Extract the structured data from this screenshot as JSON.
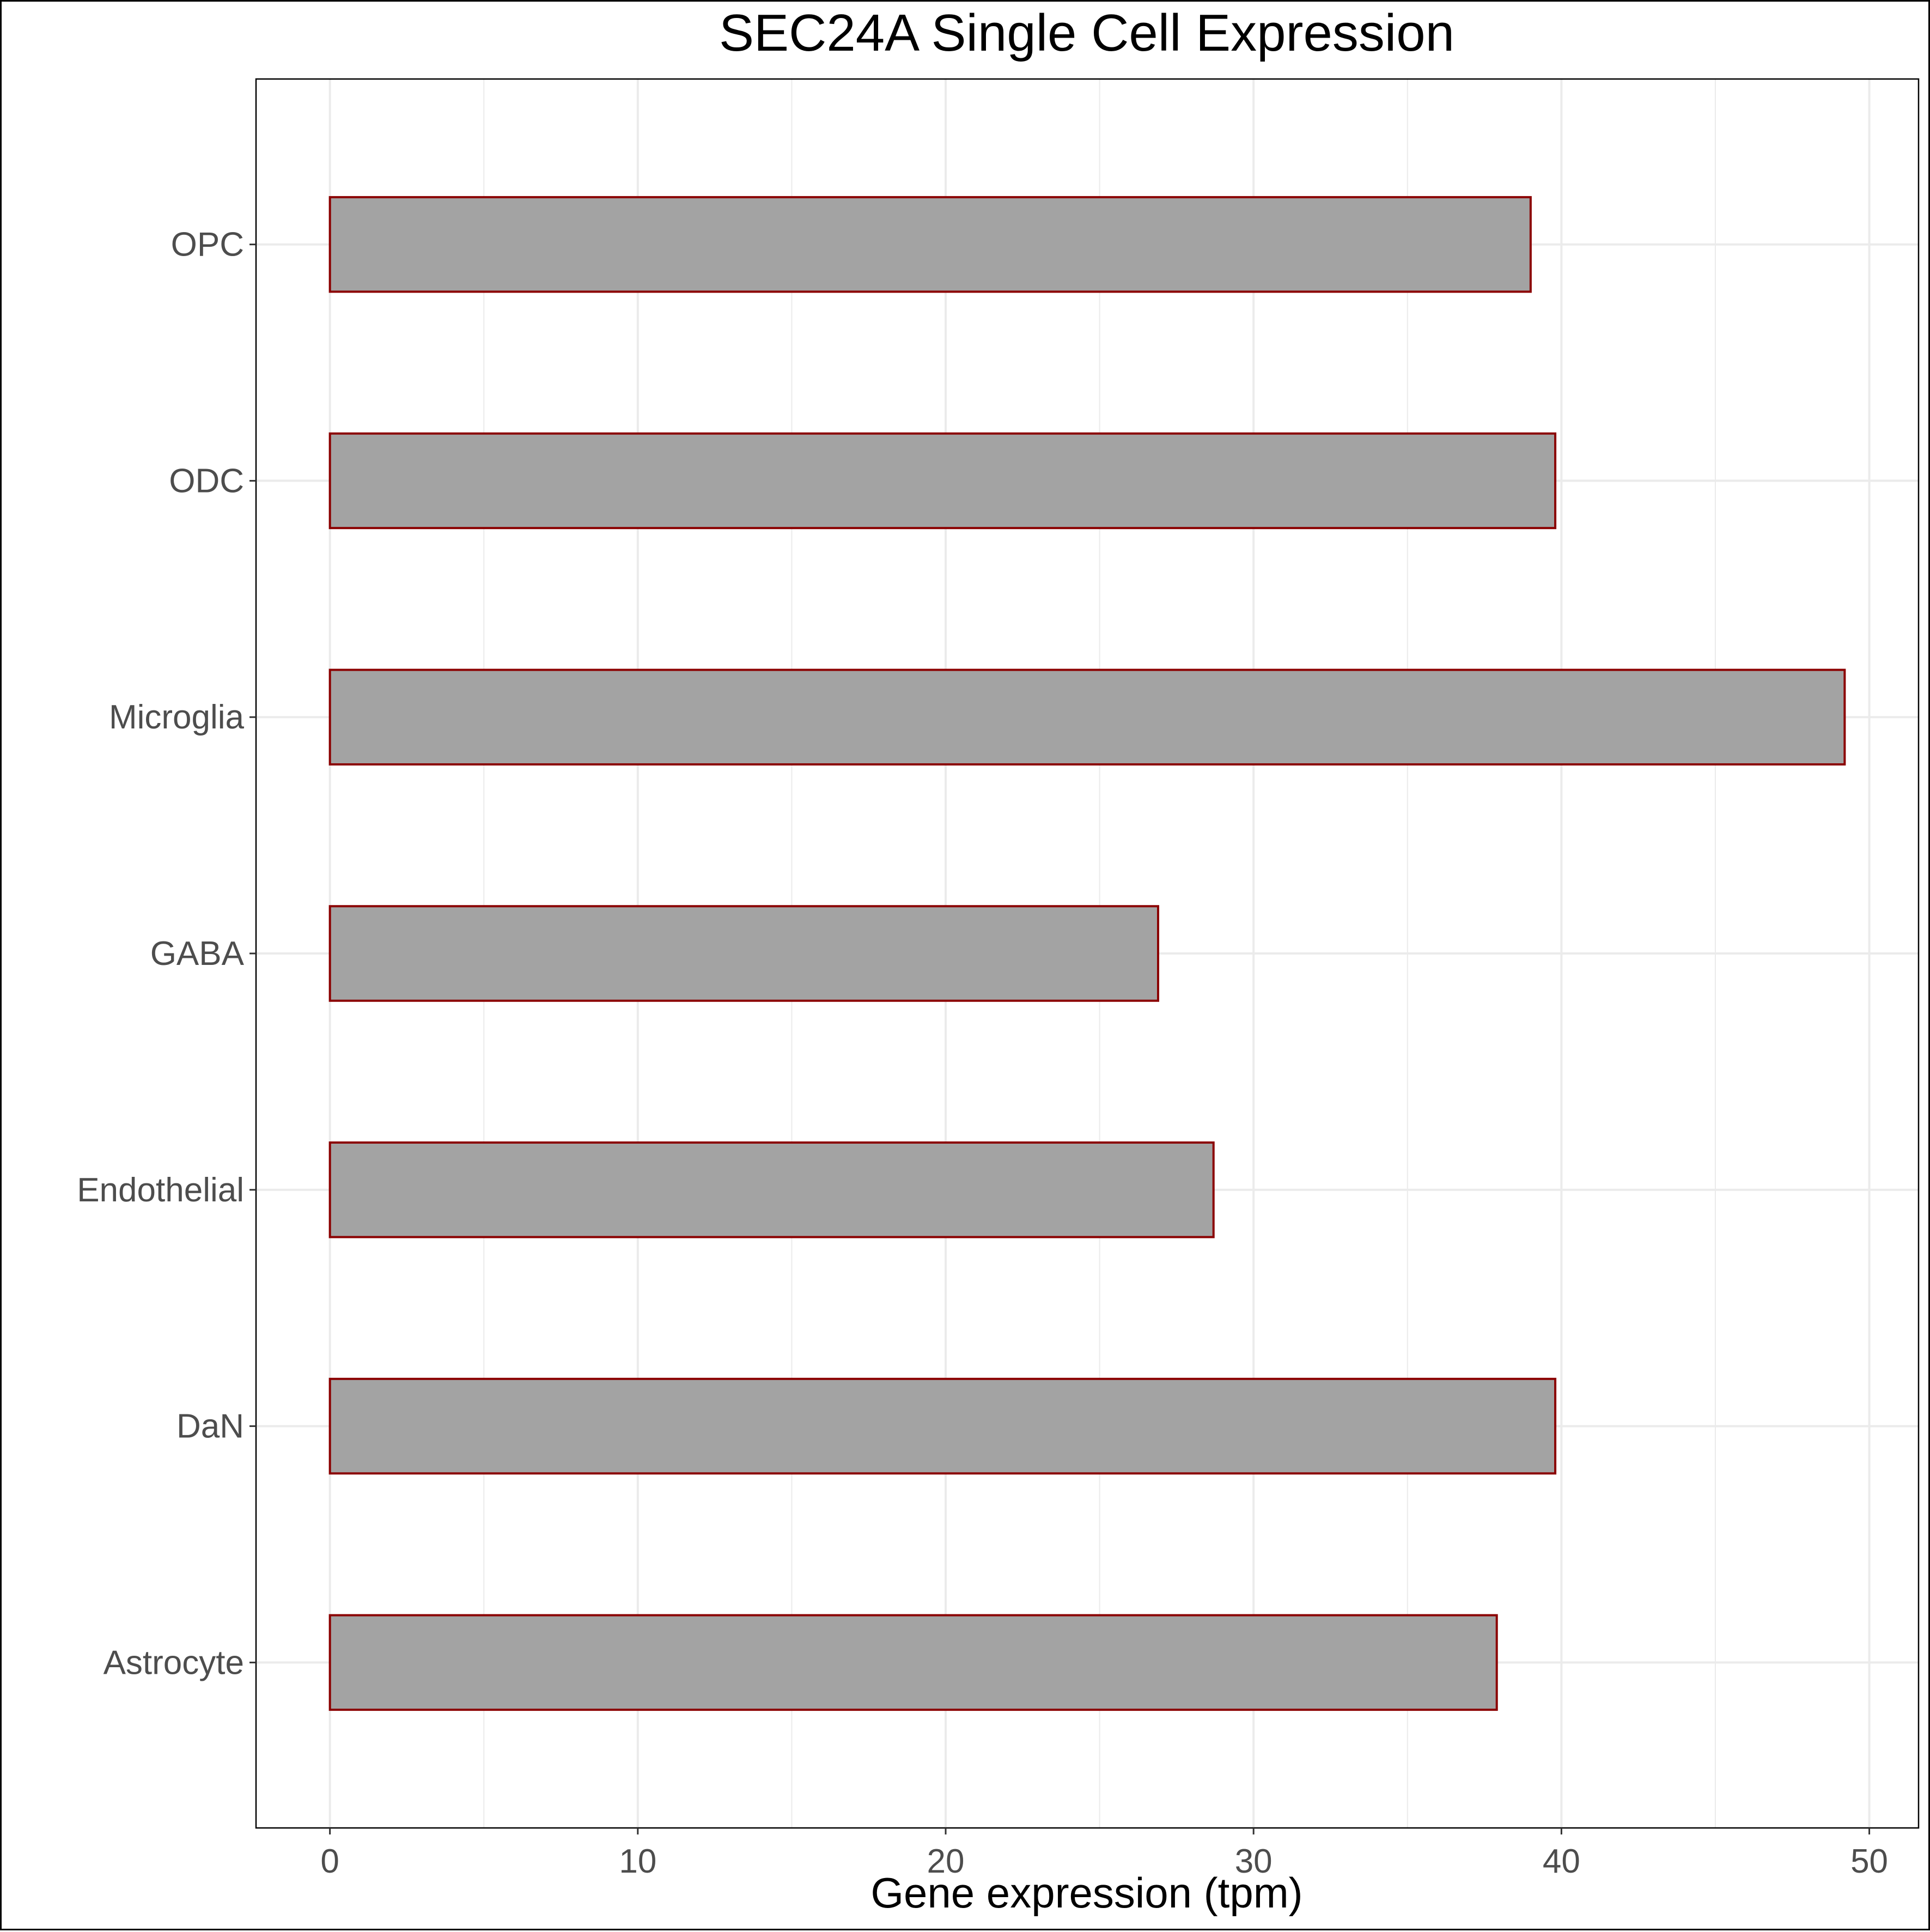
{
  "chart_data": {
    "type": "bar",
    "orientation": "horizontal",
    "title": "SEC24A Single Cell Expression",
    "xlabel": "Gene expression (tpm)",
    "ylabel": "",
    "categories": [
      "Astrocyte",
      "DaN",
      "Endothelial",
      "GABA",
      "Microglia",
      "ODC",
      "OPC"
    ],
    "values": [
      37.9,
      39.8,
      28.7,
      26.9,
      49.2,
      39.8,
      39.0
    ],
    "xlim": [
      -2.4,
      51.6
    ],
    "xticks": [
      0,
      10,
      20,
      30,
      40,
      50
    ],
    "xtick_labels": [
      "0",
      "10",
      "20",
      "30",
      "40",
      "50"
    ],
    "grid": true,
    "legend": "none",
    "colors": {
      "bar_fill": "#a3a3a3",
      "bar_outline": "#8b0000",
      "grid": "#ebebeb",
      "panel_border": "#000000",
      "tick_label": "#4d4d4d",
      "title": "#000000"
    }
  }
}
